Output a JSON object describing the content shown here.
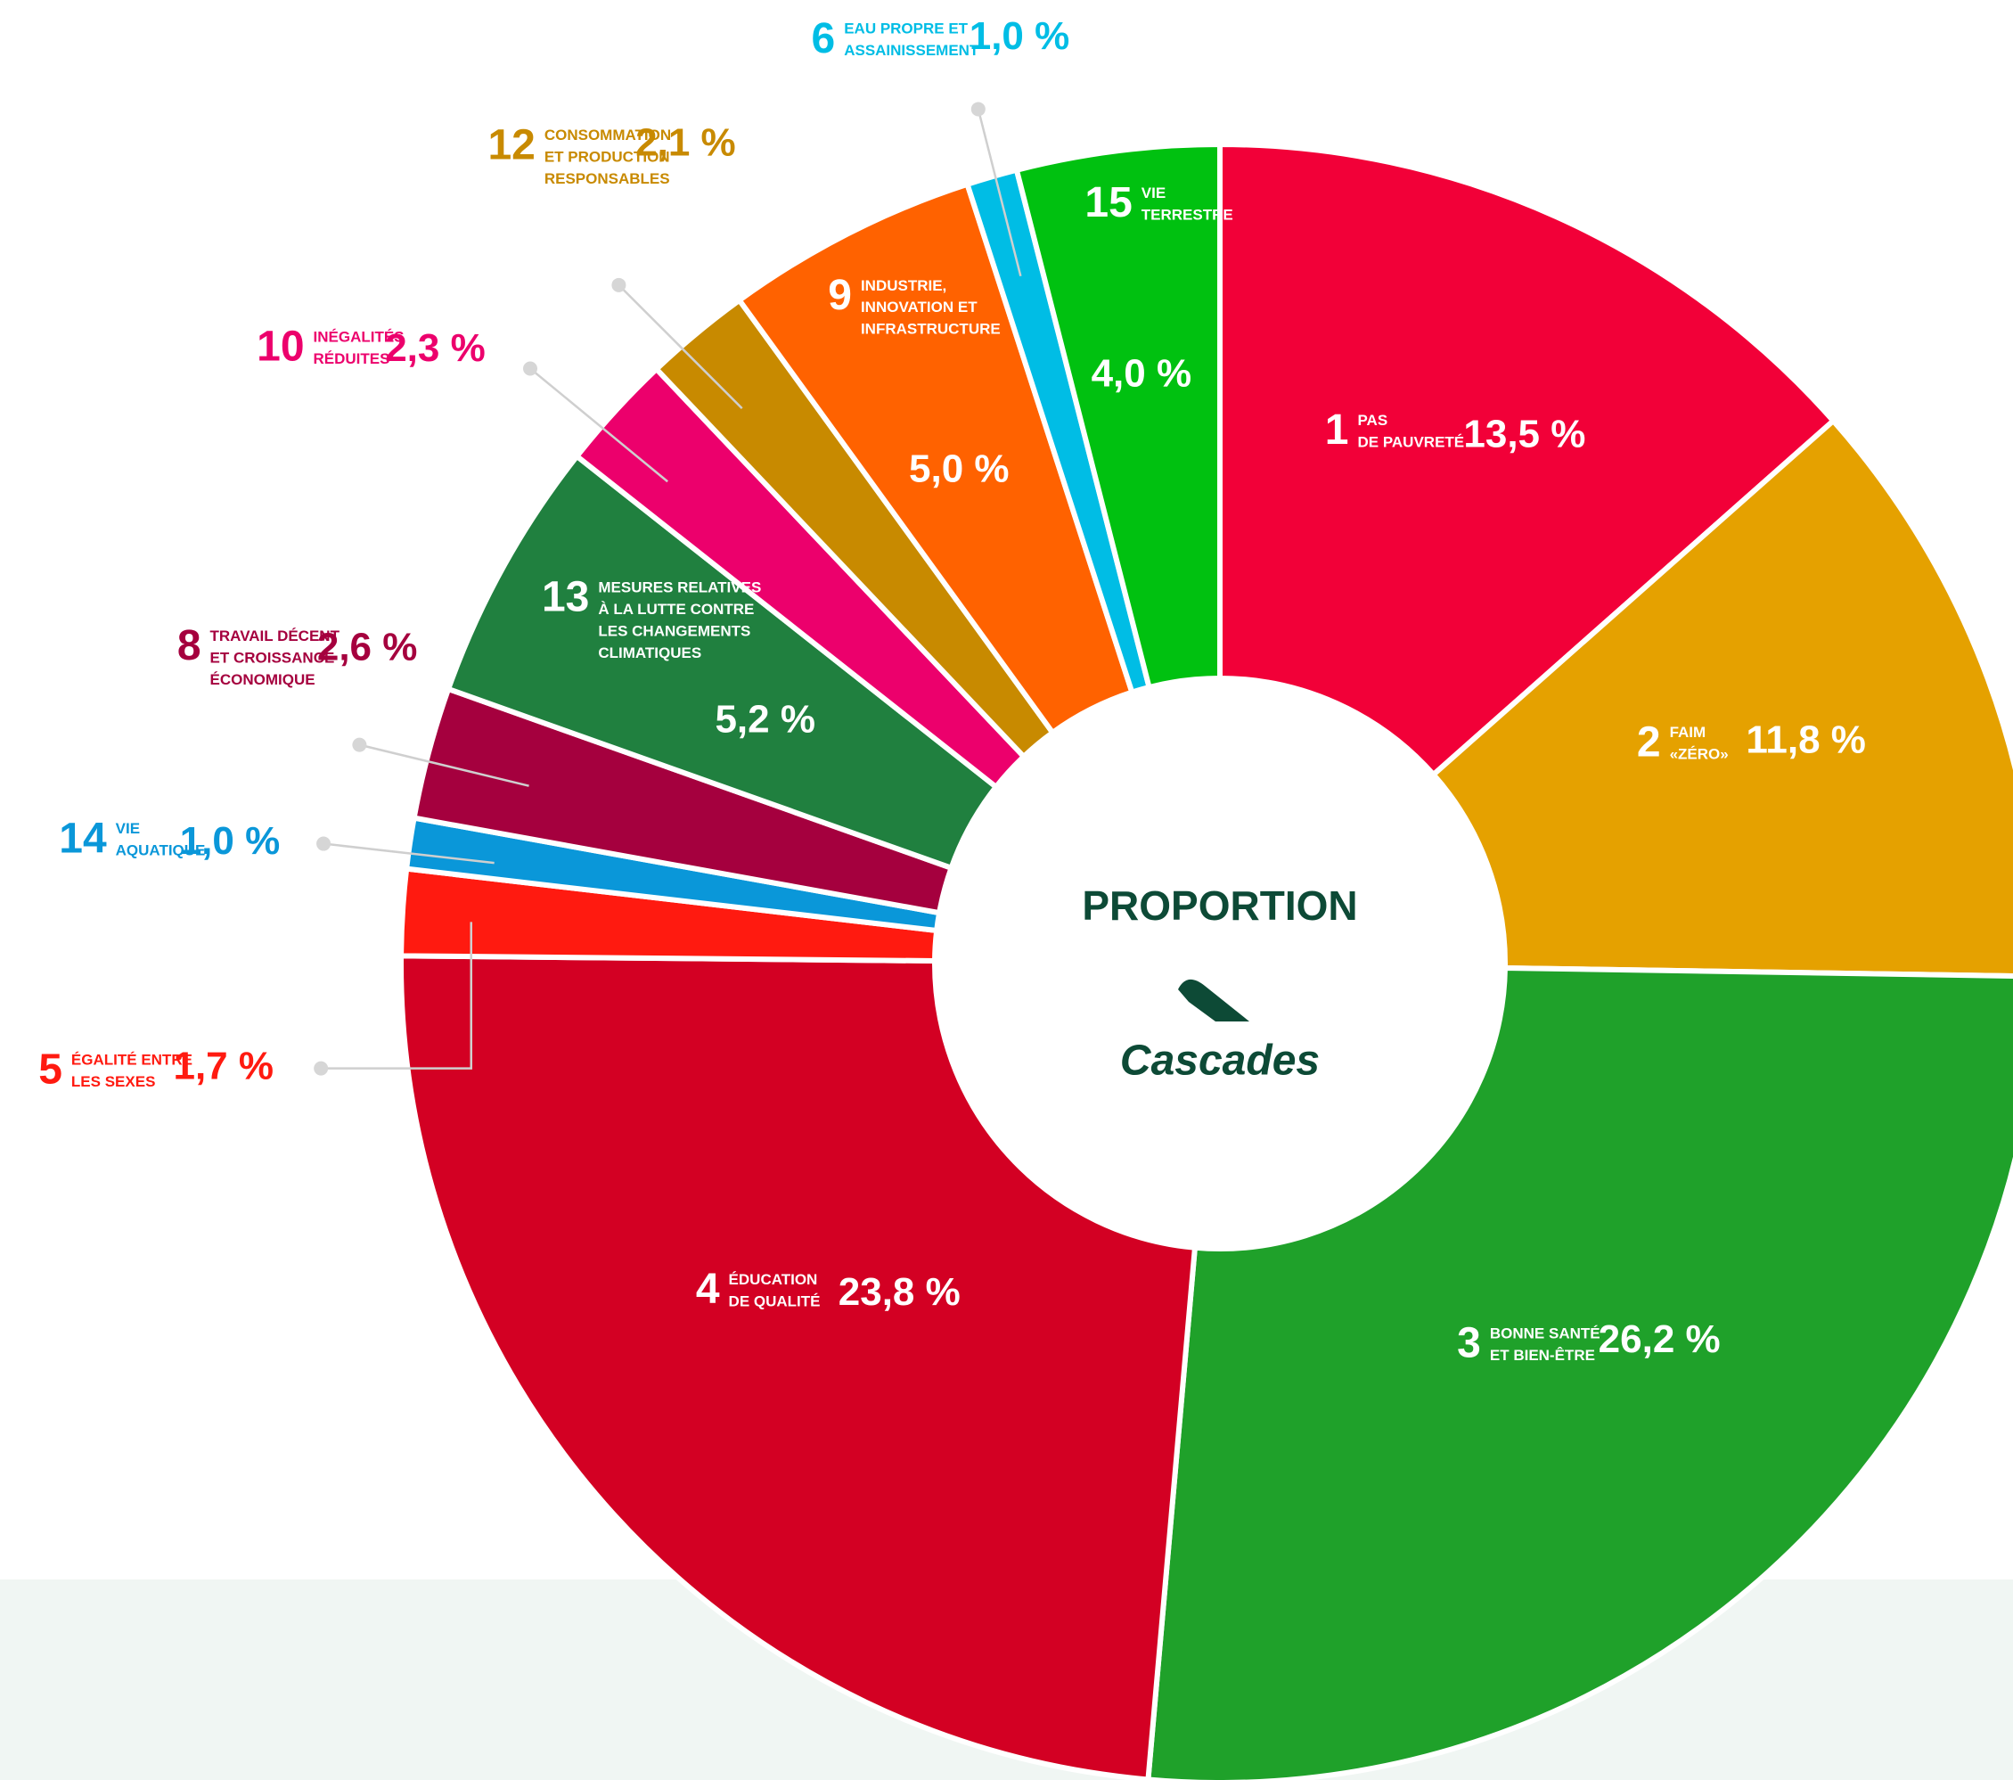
{
  "chart_data": {
    "type": "donut",
    "title": "PROPORTION",
    "logo_text": "Cascades",
    "numbers": [
      "1",
      "2",
      "3",
      "4",
      "5",
      "14",
      "8",
      "13",
      "10",
      "12",
      "9",
      "6",
      "15"
    ],
    "categories": [
      [
        "PAS",
        "DE PAUVRETÉ"
      ],
      [
        "FAIM",
        "«ZÉRO»"
      ],
      [
        "BONNE SANTÉ",
        "ET BIEN-ÊTRE"
      ],
      [
        "ÉDUCATION",
        "DE QUALITÉ"
      ],
      [
        "ÉGALITÉ ENTRE",
        "LES SEXES"
      ],
      [
        "VIE",
        "AQUATIQUE"
      ],
      [
        "TRAVAIL DÉCENT",
        "ET CROISSANCE",
        "ÉCONOMIQUE"
      ],
      [
        "MESURES RELATIVES",
        "À LA LUTTE CONTRE",
        "LES CHANGEMENTS",
        "CLIMATIQUES"
      ],
      [
        "INÉGALITÉS",
        "RÉDUITES"
      ],
      [
        "CONSOMMATION",
        "ET PRODUCTION",
        "RESPONSABLES"
      ],
      [
        "INDUSTRIE,",
        "INNOVATION ET",
        "INFRASTRUCTURE"
      ],
      [
        "EAU PROPRE ET",
        "ASSAINISSEMENT"
      ],
      [
        "VIE",
        "TERRESTRE"
      ]
    ],
    "values": [
      13.5,
      11.8,
      26.2,
      23.8,
      1.7,
      1.0,
      2.6,
      5.2,
      2.3,
      2.1,
      5.0,
      1.0,
      4.0
    ],
    "value_labels": [
      "13,5 %",
      "11,8 %",
      "26,2 %",
      "23,8 %",
      "1,7 %",
      "1,0 %",
      "2,6 %",
      "5,2 %",
      "2,3 %",
      "2,1 %",
      "5,0 %",
      "1,0 %",
      "4,0 %"
    ],
    "colors": [
      "#f20038",
      "#e5a100",
      "#1fa12a",
      "#d30023",
      "#ff1a10",
      "#0a97d9",
      "#a5003e",
      "#20803f",
      "#ec006c",
      "#c88a00",
      "#ff6200",
      "#00bde5",
      "#00c110"
    ]
  }
}
